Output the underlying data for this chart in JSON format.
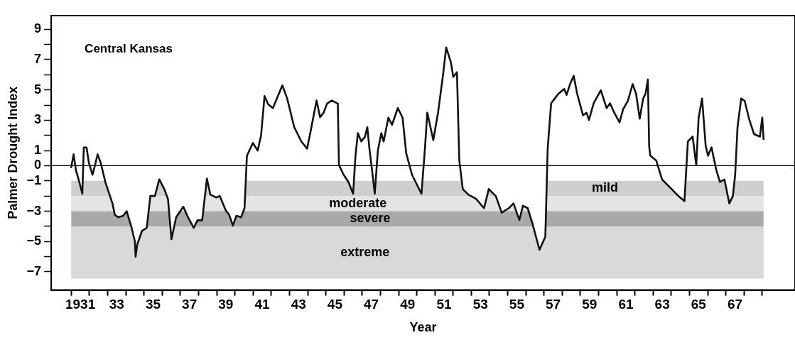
{
  "chart_data": {
    "type": "line",
    "title": "Central Kansas",
    "xlabel": "Year",
    "ylabel": "Palmer Drought Index",
    "x": [
      1930.5,
      1930.63,
      1930.76,
      1930.95,
      1931.11,
      1931.19,
      1931.34,
      1931.47,
      1931.67,
      1931.8,
      1931.95,
      1932.12,
      1932.38,
      1932.77,
      1932.9,
      1933.1,
      1933.35,
      1933.55,
      1933.81,
      1934.0,
      1934.04,
      1934.13,
      1934.39,
      1934.65,
      1934.85,
      1935.1,
      1935.34,
      1935.62,
      1935.82,
      1936.01,
      1936.27,
      1936.66,
      1936.92,
      1937.24,
      1937.44,
      1937.7,
      1937.96,
      1938.15,
      1938.48,
      1938.67,
      1939.0,
      1939.19,
      1939.39,
      1939.58,
      1939.84,
      1940.03,
      1940.16,
      1940.49,
      1940.75,
      1940.94,
      1941.13,
      1941.33,
      1941.59,
      1942.11,
      1942.37,
      1942.76,
      1943.15,
      1943.47,
      1943.66,
      1943.86,
      1943.99,
      1944.18,
      1944.38,
      1944.57,
      1944.83,
      1945.16,
      1945.22,
      1945.48,
      1945.74,
      1946.0,
      1946.13,
      1946.26,
      1946.45,
      1946.65,
      1946.78,
      1946.91,
      1947.04,
      1947.19,
      1947.36,
      1947.55,
      1947.68,
      1947.94,
      1948.14,
      1948.46,
      1948.72,
      1948.92,
      1949.24,
      1949.76,
      1949.96,
      1950.08,
      1950.41,
      1950.67,
      1950.93,
      1951.12,
      1951.38,
      1951.51,
      1951.71,
      1951.84,
      1952.03,
      1952.36,
      1952.75,
      1953.2,
      1953.46,
      1953.85,
      1954.17,
      1954.56,
      1954.82,
      1955.14,
      1955.34,
      1955.6,
      1955.86,
      1956.25,
      1956.57,
      1956.7,
      1956.89,
      1957.09,
      1957.29,
      1957.61,
      1957.74,
      1957.93,
      1958.13,
      1958.32,
      1958.64,
      1958.84,
      1958.97,
      1959.23,
      1959.62,
      1959.94,
      1960.13,
      1960.33,
      1960.65,
      1960.85,
      1961.11,
      1961.37,
      1961.56,
      1961.76,
      1961.95,
      1962.08,
      1962.21,
      1962.28,
      1962.34,
      1962.67,
      1962.99,
      1963.38,
      1963.9,
      1964.22,
      1964.41,
      1964.67,
      1964.87,
      1965.0,
      1965.19,
      1965.39,
      1965.52,
      1965.71,
      1965.97,
      1966.17,
      1966.42,
      1966.69,
      1966.88,
      1967.01,
      1967.14,
      1967.34,
      1967.53,
      1967.79,
      1968.05,
      1968.37,
      1968.5,
      1968.57
    ],
    "series": [
      {
        "color": "#111111",
        "values": [
          -0.1,
          0.75,
          -0.3,
          -1.1,
          -1.85,
          1.2,
          1.2,
          0.2,
          -0.6,
          0.0,
          0.75,
          0.2,
          -1.1,
          -2.5,
          -3.25,
          -3.4,
          -3.3,
          -3.0,
          -4.05,
          -5.0,
          -6.0,
          -5.2,
          -4.3,
          -4.1,
          -2.0,
          -2.0,
          -0.9,
          -1.55,
          -2.2,
          -4.85,
          -3.4,
          -2.7,
          -3.4,
          -4.1,
          -3.6,
          -3.6,
          -0.85,
          -1.9,
          -2.1,
          -2.0,
          -2.95,
          -3.25,
          -3.95,
          -3.3,
          -3.4,
          -2.8,
          0.65,
          1.5,
          1.0,
          2.0,
          4.6,
          4.05,
          3.8,
          5.3,
          4.45,
          2.55,
          1.6,
          1.13,
          2.25,
          3.5,
          4.3,
          3.2,
          3.5,
          4.1,
          4.3,
          4.1,
          0.05,
          -0.6,
          -1.07,
          -1.85,
          0.65,
          2.15,
          1.6,
          1.9,
          2.55,
          0.98,
          -0.28,
          -1.85,
          0.98,
          2.15,
          1.6,
          3.17,
          2.7,
          3.8,
          3.17,
          0.82,
          -0.6,
          -1.85,
          1.29,
          3.5,
          1.68,
          3.5,
          5.85,
          7.8,
          6.8,
          5.85,
          6.17,
          0.34,
          -1.54,
          -1.93,
          -2.17,
          -2.8,
          -1.54,
          -2.01,
          -3.1,
          -2.8,
          -2.49,
          -3.58,
          -2.64,
          -2.8,
          -3.8,
          -5.55,
          -4.68,
          1.13,
          4.12,
          4.43,
          4.75,
          5.06,
          4.67,
          5.38,
          5.93,
          4.75,
          3.33,
          3.49,
          3.02,
          4.12,
          4.98,
          3.8,
          4.12,
          3.57,
          2.86,
          3.73,
          4.28,
          5.38,
          4.75,
          3.1,
          4.43,
          4.75,
          5.69,
          1.29,
          0.66,
          0.34,
          -0.91,
          -1.38,
          -2.01,
          -2.33,
          1.6,
          1.92,
          0.03,
          3.17,
          4.43,
          1.29,
          0.66,
          1.21,
          -0.28,
          -1.07,
          -0.91,
          -2.49,
          -2.01,
          -0.6,
          2.55,
          4.43,
          4.28,
          3.02,
          2.08,
          1.92,
          3.17,
          1.76
        ]
      }
    ],
    "xlim": [
      1929.4,
      1970.3
    ],
    "ylim": [
      -8.2,
      9.9
    ],
    "xticks": [
      {
        "value": 1930.5,
        "label": null
      },
      {
        "value": 1931,
        "label": "1931"
      },
      {
        "value": 1931.5,
        "label": null
      },
      {
        "value": 1932.5,
        "label": null
      },
      {
        "value": 1933,
        "label": "33"
      },
      {
        "value": 1933.5,
        "label": null
      },
      {
        "value": 1934.5,
        "label": null
      },
      {
        "value": 1935,
        "label": "35"
      },
      {
        "value": 1935.5,
        "label": null
      },
      {
        "value": 1936.5,
        "label": null
      },
      {
        "value": 1937,
        "label": "37"
      },
      {
        "value": 1937.5,
        "label": null
      },
      {
        "value": 1938.5,
        "label": null
      },
      {
        "value": 1939,
        "label": "39"
      },
      {
        "value": 1939.5,
        "label": null
      },
      {
        "value": 1940.5,
        "label": null
      },
      {
        "value": 1941,
        "label": "41"
      },
      {
        "value": 1941.5,
        "label": null
      },
      {
        "value": 1942.5,
        "label": null
      },
      {
        "value": 1943,
        "label": "43"
      },
      {
        "value": 1943.5,
        "label": null
      },
      {
        "value": 1944.5,
        "label": null
      },
      {
        "value": 1945,
        "label": "45"
      },
      {
        "value": 1945.5,
        "label": null
      },
      {
        "value": 1946.5,
        "label": null
      },
      {
        "value": 1947,
        "label": "47"
      },
      {
        "value": 1947.5,
        "label": null
      },
      {
        "value": 1948.5,
        "label": null
      },
      {
        "value": 1949,
        "label": "49"
      },
      {
        "value": 1949.5,
        "label": null
      },
      {
        "value": 1950.5,
        "label": null
      },
      {
        "value": 1951,
        "label": "51"
      },
      {
        "value": 1951.5,
        "label": null
      },
      {
        "value": 1952.5,
        "label": null
      },
      {
        "value": 1953,
        "label": "53"
      },
      {
        "value": 1953.5,
        "label": null
      },
      {
        "value": 1954.5,
        "label": null
      },
      {
        "value": 1955,
        "label": "55"
      },
      {
        "value": 1955.5,
        "label": null
      },
      {
        "value": 1956.5,
        "label": null
      },
      {
        "value": 1957,
        "label": "57"
      },
      {
        "value": 1957.5,
        "label": null
      },
      {
        "value": 1958.5,
        "label": null
      },
      {
        "value": 1959,
        "label": "59"
      },
      {
        "value": 1959.5,
        "label": null
      },
      {
        "value": 1960.5,
        "label": null
      },
      {
        "value": 1961,
        "label": "61"
      },
      {
        "value": 1961.5,
        "label": null
      },
      {
        "value": 1962.5,
        "label": null
      },
      {
        "value": 1963,
        "label": "63"
      },
      {
        "value": 1963.5,
        "label": null
      },
      {
        "value": 1964.5,
        "label": null
      },
      {
        "value": 1965,
        "label": "65"
      },
      {
        "value": 1965.5,
        "label": null
      },
      {
        "value": 1966.5,
        "label": null
      },
      {
        "value": 1967,
        "label": "67"
      },
      {
        "value": 1967.5,
        "label": null
      },
      {
        "value": 1968.5,
        "label": null
      }
    ],
    "yticks": [
      -7,
      {
        "value": -6,
        "label": null
      },
      -5,
      {
        "value": -4,
        "label": null
      },
      -3,
      {
        "value": -2,
        "label": null
      },
      -1,
      0,
      1,
      {
        "value": 2,
        "label": null
      },
      3,
      {
        "value": 4,
        "label": null
      },
      5,
      {
        "value": 6,
        "label": null
      },
      7,
      {
        "value": 8,
        "label": null
      },
      9
    ],
    "ref_lines": [
      {
        "axis": "y",
        "value": 0,
        "color": "#000000"
      }
    ],
    "bands": [
      {
        "axis": "y",
        "from": -1,
        "to": -2,
        "color": "#cfcfcf",
        "label": "mild"
      },
      {
        "axis": "y",
        "from": -2,
        "to": -3,
        "color": "#e4e4e4",
        "label": "moderate"
      },
      {
        "axis": "y",
        "from": -3,
        "to": -4,
        "color": "#a9a9a9",
        "label": "severe"
      },
      {
        "axis": "y",
        "from": -4,
        "to": -7.45,
        "color": "#d9d9d9",
        "label": "extreme"
      }
    ],
    "grid": false,
    "legend": false,
    "marker": "none",
    "line_style": "solid"
  }
}
